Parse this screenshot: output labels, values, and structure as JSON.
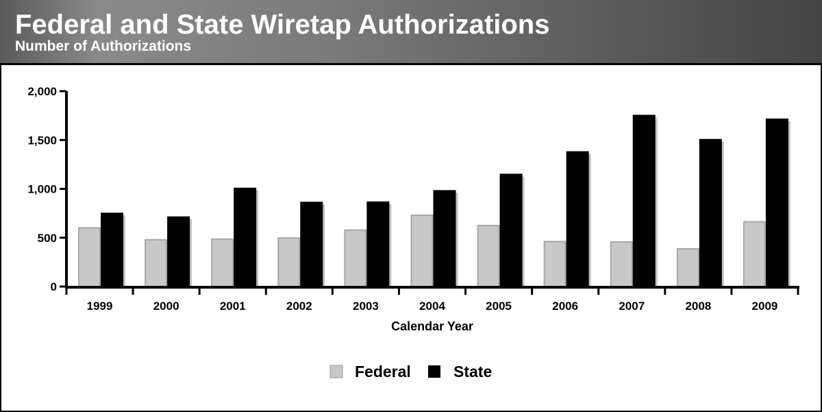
{
  "chart_data": {
    "type": "bar",
    "title": "Federal and State Wiretap Authorizations",
    "subtitle": "Number of Authorizations",
    "xlabel": "Calendar Year",
    "ylabel": "",
    "ylim": [
      0,
      2000
    ],
    "yticks": [
      0,
      500,
      1000,
      1500,
      2000
    ],
    "ytick_labels": [
      "0",
      "500",
      "1,000",
      "1,500",
      "2,000"
    ],
    "categories": [
      "1999",
      "2000",
      "2001",
      "2002",
      "2003",
      "2004",
      "2005",
      "2006",
      "2007",
      "2008",
      "2009"
    ],
    "series": [
      {
        "name": "Federal",
        "color": "#c8c8c8",
        "values": [
          601,
          479,
          486,
          497,
          578,
          730,
          625,
          461,
          457,
          386,
          663
        ]
      },
      {
        "name": "State",
        "color": "#000000",
        "values": [
          749,
          711,
          1005,
          861,
          864,
          980,
          1148,
          1378,
          1751,
          1504,
          1713
        ]
      }
    ],
    "grid": false,
    "legend": "bottom-center"
  }
}
